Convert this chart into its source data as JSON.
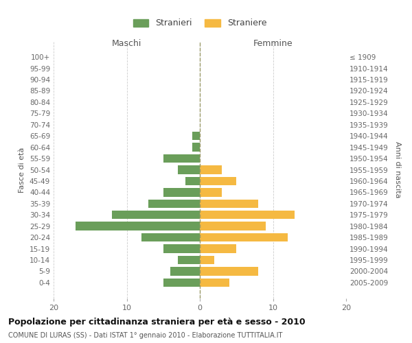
{
  "age_groups": [
    "100+",
    "95-99",
    "90-94",
    "85-89",
    "80-84",
    "75-79",
    "70-74",
    "65-69",
    "60-64",
    "55-59",
    "50-54",
    "45-49",
    "40-44",
    "35-39",
    "30-34",
    "25-29",
    "20-24",
    "15-19",
    "10-14",
    "5-9",
    "0-4"
  ],
  "birth_years": [
    "≤ 1909",
    "1910-1914",
    "1915-1919",
    "1920-1924",
    "1925-1929",
    "1930-1934",
    "1935-1939",
    "1940-1944",
    "1945-1949",
    "1950-1954",
    "1955-1959",
    "1960-1964",
    "1965-1969",
    "1970-1974",
    "1975-1979",
    "1980-1984",
    "1985-1989",
    "1990-1994",
    "1995-1999",
    "2000-2004",
    "2005-2009"
  ],
  "maschi": [
    0,
    0,
    0,
    0,
    0,
    0,
    0,
    1,
    1,
    5,
    3,
    2,
    5,
    7,
    12,
    17,
    8,
    5,
    3,
    4,
    5
  ],
  "femmine": [
    0,
    0,
    0,
    0,
    0,
    0,
    0,
    0,
    0,
    0,
    3,
    5,
    3,
    8,
    13,
    9,
    12,
    5,
    2,
    8,
    4
  ],
  "maschi_color": "#6a9e5a",
  "femmine_color": "#f5b942",
  "title": "Popolazione per cittadinanza straniera per età e sesso - 2010",
  "subtitle": "COMUNE DI LURAS (SS) - Dati ISTAT 1° gennaio 2010 - Elaborazione TUTTITALIA.IT",
  "xlabel_left": "Maschi",
  "xlabel_right": "Femmine",
  "ylabel_left": "Fasce di età",
  "ylabel_right": "Anni di nascita",
  "legend_maschi": "Stranieri",
  "legend_femmine": "Straniere",
  "xlim": 20,
  "bg_color": "#ffffff",
  "grid_color": "#cccccc"
}
